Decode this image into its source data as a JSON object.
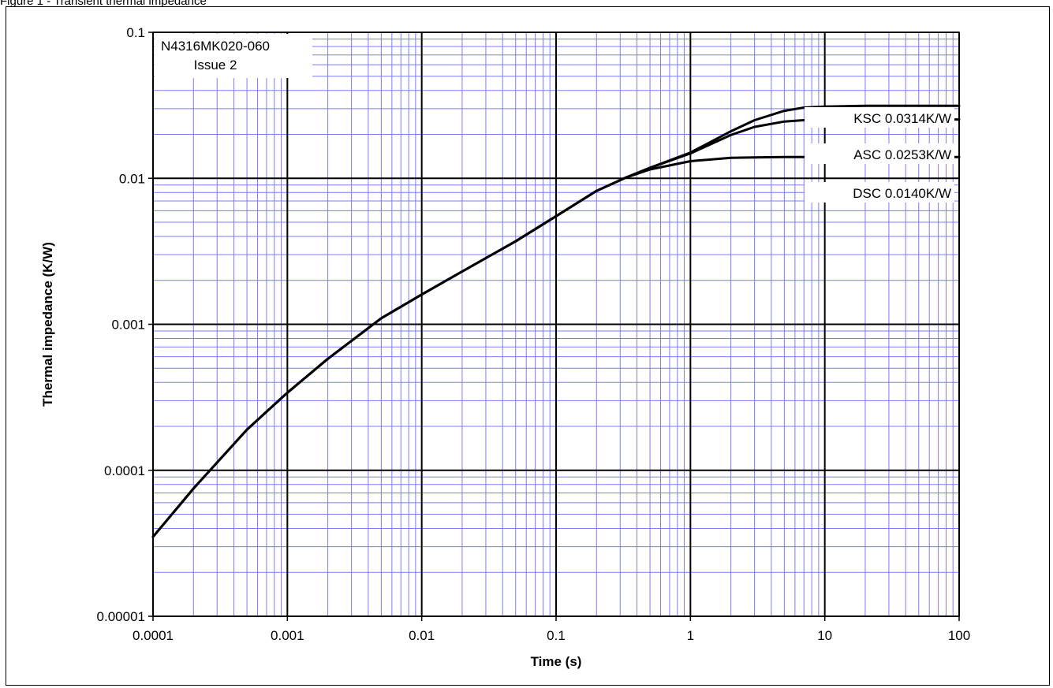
{
  "figure": {
    "caption_fragment": "Figure 1 - Transient thermal impedance"
  },
  "chart_data": {
    "type": "line",
    "xlabel": "Time (s)",
    "ylabel": "Thermal impedance (K/W)",
    "xscale": "log",
    "yscale": "log",
    "xlim": [
      0.0001,
      100
    ],
    "ylim": [
      1e-05,
      0.1
    ],
    "x_tick_labels": [
      "0.0001",
      "0.001",
      "0.01",
      "0.1",
      "1",
      "10",
      "100"
    ],
    "y_tick_labels": [
      "0.1",
      "0.01",
      "0.001",
      "0.0001",
      "0.00001"
    ],
    "grid": {
      "major": true,
      "minor": true
    },
    "note": [
      "N4316MK020-060",
      "Issue 2"
    ],
    "series": [
      {
        "name": "KSC 0.0314K/W",
        "x": [
          0.0001,
          0.0002,
          0.0005,
          0.001,
          0.002,
          0.005,
          0.01,
          0.02,
          0.05,
          0.1,
          0.2,
          0.33,
          0.5,
          1,
          2,
          3,
          5,
          7,
          10,
          20,
          50,
          100
        ],
        "y": [
          3.5e-05,
          7.5e-05,
          0.00019,
          0.00034,
          0.00058,
          0.0011,
          0.0016,
          0.0023,
          0.0037,
          0.0055,
          0.0082,
          0.0101,
          0.0118,
          0.015,
          0.021,
          0.025,
          0.029,
          0.0305,
          0.031,
          0.0314,
          0.0314,
          0.0314
        ]
      },
      {
        "name": "ASC 0.0253K/W",
        "x": [
          0.0001,
          0.0002,
          0.0005,
          0.001,
          0.002,
          0.005,
          0.01,
          0.02,
          0.05,
          0.1,
          0.2,
          0.33,
          0.5,
          1,
          2,
          3,
          5,
          7,
          10,
          20,
          50,
          100
        ],
        "y": [
          3.5e-05,
          7.5e-05,
          0.00019,
          0.00034,
          0.00058,
          0.0011,
          0.0016,
          0.0023,
          0.0037,
          0.0055,
          0.0082,
          0.0101,
          0.0118,
          0.0148,
          0.0198,
          0.0225,
          0.0245,
          0.025,
          0.0252,
          0.0253,
          0.0253,
          0.0253
        ]
      },
      {
        "name": "DSC 0.0140K/W",
        "x": [
          0.0001,
          0.0002,
          0.0005,
          0.001,
          0.002,
          0.005,
          0.01,
          0.02,
          0.05,
          0.1,
          0.2,
          0.33,
          0.5,
          1,
          2,
          3,
          5,
          7,
          10,
          20,
          50,
          100
        ],
        "y": [
          3.5e-05,
          7.5e-05,
          0.00019,
          0.00034,
          0.00058,
          0.0011,
          0.0016,
          0.0023,
          0.0037,
          0.0055,
          0.0082,
          0.0101,
          0.0115,
          0.0131,
          0.0138,
          0.0139,
          0.014,
          0.014,
          0.014,
          0.014,
          0.014,
          0.014
        ]
      }
    ]
  },
  "colors": {
    "minor_grid": "#7b7bff",
    "major_grid": "#000000",
    "line": "#000000"
  }
}
